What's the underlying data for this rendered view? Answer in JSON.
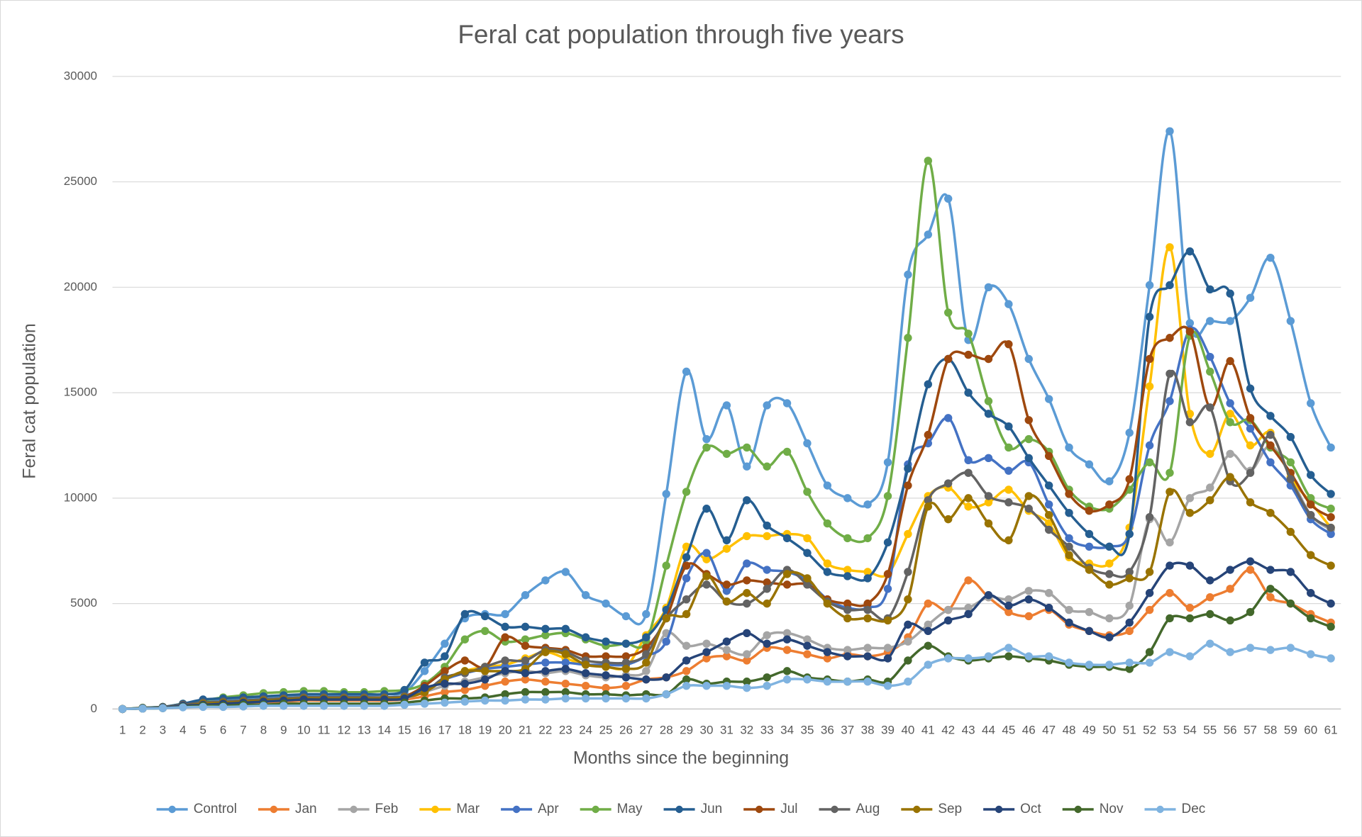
{
  "chart_data": {
    "type": "line",
    "title": "Feral cat population through five years",
    "x_label": "Months since the beginning",
    "y_label": "Feral cat population",
    "categories": [
      "1",
      "2",
      "3",
      "4",
      "5",
      "6",
      "7",
      "8",
      "9",
      "10",
      "11",
      "12",
      "13",
      "14",
      "15",
      "16",
      "17",
      "18",
      "19",
      "20",
      "21",
      "22",
      "23",
      "24",
      "25",
      "26",
      "27",
      "28",
      "29",
      "30",
      "31",
      "32",
      "33",
      "34",
      "35",
      "36",
      "37",
      "38",
      "39",
      "40",
      "41",
      "42",
      "43",
      "44",
      "45",
      "46",
      "47",
      "48",
      "49",
      "50",
      "51",
      "52",
      "53",
      "54",
      "55",
      "56",
      "57",
      "58",
      "59",
      "60",
      "61"
    ],
    "ylim": [
      0,
      30000
    ],
    "yticks": [
      0,
      5000,
      10000,
      15000,
      20000,
      25000,
      30000
    ],
    "grid": true,
    "legend": "bottom",
    "smooth": true,
    "series": [
      {
        "name": "Control",
        "color": "#5b9bd5",
        "values": [
          0,
          50,
          100,
          200,
          350,
          400,
          450,
          550,
          600,
          650,
          650,
          650,
          650,
          700,
          800,
          1800,
          3100,
          4300,
          4500,
          4500,
          5400,
          6100,
          6500,
          5400,
          5000,
          4400,
          4500,
          10200,
          16000,
          12800,
          14400,
          11500,
          14400,
          14500,
          12600,
          10600,
          10000,
          9700,
          11700,
          20600,
          22500,
          24200,
          17500,
          20000,
          19200,
          16600,
          14700,
          12400,
          11600,
          10800,
          13100,
          20100,
          27400,
          18300,
          18400,
          18400,
          19500,
          21400,
          18400,
          14500,
          12400
        ]
      },
      {
        "name": "Jan",
        "color": "#ed7d31",
        "values": [
          0,
          20,
          50,
          100,
          150,
          200,
          250,
          300,
          350,
          400,
          400,
          400,
          400,
          400,
          450,
          600,
          800,
          900,
          1100,
          1300,
          1400,
          1300,
          1200,
          1100,
          1000,
          1100,
          1400,
          1500,
          1800,
          2400,
          2500,
          2300,
          2900,
          2800,
          2600,
          2400,
          2600,
          2500,
          2700,
          3400,
          5000,
          4700,
          6100,
          5300,
          4600,
          4400,
          4700,
          4000,
          3700,
          3500,
          3700,
          4700,
          5500,
          4800,
          5300,
          5700,
          6600,
          5300,
          5000,
          4500,
          4100
        ]
      },
      {
        "name": "Feb",
        "color": "#a5a5a5",
        "values": [
          0,
          30,
          60,
          150,
          200,
          250,
          300,
          350,
          400,
          450,
          450,
          450,
          450,
          450,
          500,
          800,
          1100,
          1300,
          1500,
          1700,
          1800,
          1700,
          1800,
          1600,
          1500,
          1600,
          1800,
          3600,
          3000,
          3100,
          2800,
          2600,
          3500,
          3600,
          3300,
          2900,
          2800,
          2900,
          2900,
          3200,
          4000,
          4700,
          4800,
          5300,
          5200,
          5600,
          5500,
          4700,
          4600,
          4300,
          4900,
          9000,
          7900,
          10000,
          10500,
          12100,
          11300,
          12500,
          11000,
          9200,
          8500
        ]
      },
      {
        "name": "Mar",
        "color": "#ffc000",
        "values": [
          0,
          40,
          80,
          200,
          300,
          350,
          400,
          450,
          500,
          550,
          550,
          550,
          550,
          550,
          600,
          900,
          1400,
          1800,
          2000,
          2100,
          2400,
          2700,
          2400,
          2100,
          2000,
          2000,
          3500,
          4800,
          7700,
          7100,
          7600,
          8200,
          8200,
          8300,
          8100,
          6900,
          6600,
          6500,
          6400,
          8300,
          10100,
          10500,
          9600,
          9800,
          10400,
          9400,
          8800,
          7200,
          6900,
          6900,
          8600,
          15300,
          21900,
          14000,
          12100,
          14000,
          12500,
          13100,
          11000,
          9800,
          8600
        ]
      },
      {
        "name": "Apr",
        "color": "#4472c4",
        "values": [
          0,
          40,
          80,
          200,
          300,
          350,
          400,
          450,
          500,
          550,
          550,
          550,
          550,
          550,
          600,
          900,
          1400,
          1700,
          1900,
          2000,
          2100,
          2200,
          2200,
          2100,
          2100,
          2100,
          2500,
          3200,
          6200,
          7400,
          5600,
          6900,
          6600,
          6500,
          6100,
          5200,
          4800,
          4800,
          5700,
          11600,
          12600,
          13800,
          11800,
          11900,
          11300,
          11700,
          9700,
          8100,
          7700,
          7700,
          8300,
          12500,
          14600,
          18000,
          16700,
          14500,
          13300,
          11700,
          10600,
          9000,
          8300
        ]
      },
      {
        "name": "May",
        "color": "#70ad47",
        "values": [
          0,
          60,
          100,
          250,
          400,
          550,
          650,
          750,
          800,
          850,
          850,
          800,
          800,
          850,
          900,
          1200,
          2000,
          3300,
          3700,
          3200,
          3300,
          3500,
          3600,
          3300,
          3000,
          3100,
          3200,
          6800,
          10300,
          12400,
          12100,
          12400,
          11500,
          12200,
          10300,
          8800,
          8100,
          8100,
          10100,
          17600,
          26000,
          18800,
          17800,
          14600,
          12400,
          12800,
          12200,
          10400,
          9600,
          9500,
          10400,
          11700,
          11200,
          17700,
          16000,
          13600,
          13700,
          12400,
          11700,
          10000,
          9500
        ]
      },
      {
        "name": "Jun",
        "color": "#255e91",
        "values": [
          0,
          50,
          100,
          250,
          450,
          500,
          550,
          600,
          650,
          700,
          700,
          700,
          700,
          700,
          900,
          2200,
          2500,
          4500,
          4400,
          3900,
          3900,
          3800,
          3800,
          3400,
          3200,
          3100,
          3400,
          4700,
          7200,
          9500,
          8000,
          9900,
          8700,
          8100,
          7400,
          6500,
          6300,
          6200,
          7900,
          11400,
          15400,
          16600,
          15000,
          14000,
          13400,
          11900,
          10600,
          9300,
          8300,
          7700,
          8300,
          18600,
          20100,
          21700,
          19900,
          19700,
          15200,
          13900,
          12900,
          11100,
          10200
        ]
      },
      {
        "name": "Jul",
        "color": "#9e480e",
        "values": [
          0,
          40,
          80,
          200,
          300,
          350,
          400,
          450,
          500,
          550,
          550,
          550,
          550,
          550,
          600,
          1100,
          1800,
          2300,
          2000,
          3400,
          3000,
          2900,
          2800,
          2500,
          2500,
          2500,
          2900,
          4300,
          6800,
          6400,
          5900,
          6100,
          6000,
          5900,
          5900,
          5200,
          5000,
          5000,
          6400,
          10600,
          13000,
          16600,
          16800,
          16600,
          17300,
          13700,
          12000,
          10200,
          9400,
          9700,
          10900,
          16600,
          17600,
          17900,
          14300,
          16500,
          13800,
          12500,
          11200,
          9700,
          9100
        ]
      },
      {
        "name": "Aug",
        "color": "#636363",
        "values": [
          0,
          40,
          80,
          200,
          300,
          350,
          400,
          450,
          500,
          550,
          550,
          550,
          550,
          550,
          600,
          800,
          1500,
          1700,
          2000,
          2300,
          2300,
          2800,
          2700,
          2300,
          2200,
          2200,
          2600,
          4300,
          5200,
          5900,
          5100,
          5000,
          5700,
          6600,
          5900,
          5100,
          4700,
          4700,
          4300,
          6500,
          9900,
          10700,
          11200,
          10100,
          9800,
          9500,
          8500,
          7700,
          6700,
          6400,
          6500,
          9100,
          15900,
          13600,
          14300,
          10800,
          11200,
          13000,
          10900,
          9200,
          8600
        ]
      },
      {
        "name": "Sep",
        "color": "#997300",
        "values": [
          0,
          30,
          70,
          150,
          250,
          300,
          350,
          400,
          450,
          500,
          500,
          500,
          500,
          500,
          550,
          800,
          1400,
          1800,
          1800,
          1800,
          1900,
          2700,
          2600,
          2100,
          2000,
          1900,
          2200,
          4300,
          4500,
          6300,
          5100,
          5500,
          5000,
          6400,
          6200,
          5000,
          4300,
          4300,
          4200,
          5200,
          9600,
          9000,
          10000,
          8800,
          8000,
          10100,
          9200,
          7300,
          6600,
          5900,
          6200,
          6500,
          10300,
          9300,
          9900,
          11000,
          9800,
          9300,
          8400,
          7300,
          6800
        ]
      },
      {
        "name": "Oct",
        "color": "#264478",
        "values": [
          0,
          30,
          60,
          150,
          200,
          250,
          300,
          350,
          400,
          450,
          450,
          450,
          450,
          450,
          500,
          1000,
          1200,
          1200,
          1400,
          1800,
          1700,
          1800,
          1900,
          1700,
          1600,
          1500,
          1400,
          1500,
          2300,
          2700,
          3200,
          3600,
          3100,
          3300,
          3000,
          2700,
          2500,
          2500,
          2400,
          4000,
          3700,
          4200,
          4500,
          5400,
          4900,
          5200,
          4800,
          4100,
          3700,
          3400,
          4100,
          5500,
          6800,
          6800,
          6100,
          6600,
          7000,
          6600,
          6500,
          5500,
          5000
        ]
      },
      {
        "name": "Nov",
        "color": "#43682b",
        "values": [
          0,
          20,
          40,
          100,
          150,
          150,
          200,
          200,
          250,
          250,
          250,
          250,
          250,
          250,
          300,
          400,
          500,
          500,
          550,
          700,
          800,
          800,
          800,
          700,
          700,
          650,
          700,
          700,
          1400,
          1200,
          1300,
          1300,
          1500,
          1800,
          1500,
          1400,
          1300,
          1400,
          1300,
          2300,
          3000,
          2500,
          2300,
          2400,
          2500,
          2400,
          2300,
          2100,
          2000,
          2000,
          1900,
          2700,
          4300,
          4300,
          4500,
          4200,
          4600,
          5700,
          5000,
          4300,
          3900
        ]
      },
      {
        "name": "Dec",
        "color": "#7fb3e0",
        "values": [
          0,
          20,
          40,
          80,
          100,
          100,
          120,
          150,
          150,
          150,
          150,
          150,
          150,
          150,
          200,
          250,
          300,
          350,
          400,
          400,
          450,
          450,
          500,
          500,
          500,
          500,
          500,
          700,
          1100,
          1100,
          1100,
          1000,
          1100,
          1400,
          1400,
          1300,
          1300,
          1300,
          1100,
          1300,
          2100,
          2400,
          2400,
          2500,
          2900,
          2500,
          2500,
          2200,
          2100,
          2100,
          2200,
          2200,
          2700,
          2500,
          3100,
          2700,
          2900,
          2800,
          2900,
          2600,
          2400
        ]
      }
    ]
  }
}
